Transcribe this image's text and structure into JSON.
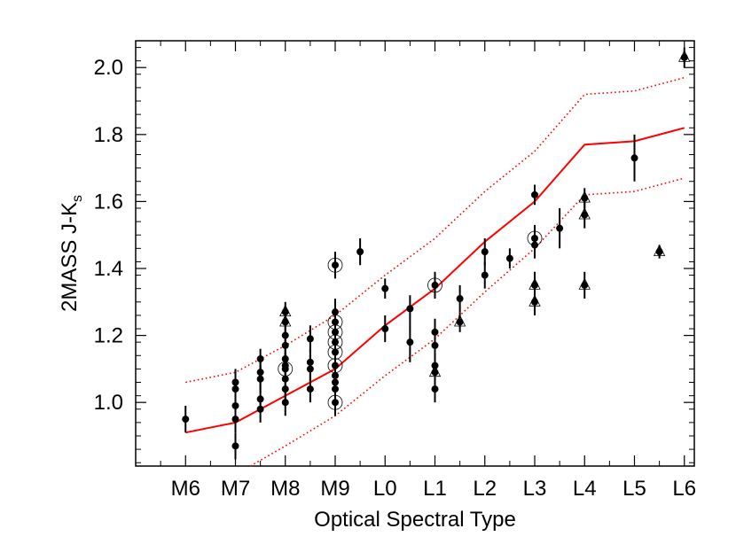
{
  "chart_data": {
    "type": "scatter",
    "title": "",
    "xlabel": "Optical Spectral Type",
    "ylabel_main": "2MASS J-K",
    "ylabel_sub": "s",
    "xlim": [
      -1,
      10.2
    ],
    "ylim": [
      0.81,
      2.08
    ],
    "x_ticks": [
      0,
      1,
      2,
      3,
      4,
      5,
      6,
      7,
      8,
      9,
      10
    ],
    "x_tick_labels": [
      "M6",
      "M7",
      "M8",
      "M9",
      "L0",
      "L1",
      "L2",
      "L3",
      "L4",
      "L5",
      "L6"
    ],
    "y_ticks": [
      1.0,
      1.2,
      1.4,
      1.6,
      1.8,
      2.0
    ],
    "y_tick_labels": [
      "1.0",
      "1.2",
      "1.4",
      "1.6",
      "1.8",
      "2.0"
    ],
    "series": [
      {
        "style": "solid",
        "color": "#ff0000",
        "x": [
          0,
          1,
          2,
          3,
          4,
          5,
          6,
          7,
          8,
          9,
          10
        ],
        "y": [
          0.91,
          0.94,
          1.02,
          1.1,
          1.23,
          1.34,
          1.48,
          1.6,
          1.77,
          1.78,
          1.82
        ]
      },
      {
        "style": "dotted",
        "color": "#ff0000",
        "x": [
          0,
          1,
          2,
          3,
          4,
          5,
          6,
          7,
          8,
          9,
          10
        ],
        "y": [
          1.06,
          1.09,
          1.17,
          1.26,
          1.38,
          1.49,
          1.63,
          1.75,
          1.92,
          1.93,
          1.97
        ]
      },
      {
        "style": "dotted",
        "color": "#ff0000",
        "x": [
          1.3,
          2,
          3,
          4,
          5,
          6,
          7,
          8,
          9,
          10
        ],
        "y": [
          0.81,
          0.87,
          0.96,
          1.08,
          1.19,
          1.33,
          1.46,
          1.62,
          1.63,
          1.67
        ]
      }
    ],
    "points": [
      {
        "x": 0.0,
        "y": 0.95,
        "err": 0.04
      },
      {
        "x": 1.0,
        "y": 1.06,
        "err": 0.04
      },
      {
        "x": 1.0,
        "y": 1.04,
        "err": 0.04
      },
      {
        "x": 1.0,
        "y": 0.99,
        "err": 0.04
      },
      {
        "x": 1.0,
        "y": 0.95,
        "err": 0.04
      },
      {
        "x": 1.0,
        "y": 0.87,
        "err": 0.04
      },
      {
        "x": 1.5,
        "y": 1.13,
        "err": 0.03
      },
      {
        "x": 1.5,
        "y": 1.09,
        "err": 0.04
      },
      {
        "x": 1.5,
        "y": 1.07,
        "err": 0.04
      },
      {
        "x": 1.5,
        "y": 1.01,
        "err": 0.04
      },
      {
        "x": 1.5,
        "y": 0.98,
        "err": 0.04
      },
      {
        "x": 2.0,
        "y": 1.27,
        "err": 0.03,
        "marker": "triangle"
      },
      {
        "x": 2.0,
        "y": 1.24,
        "err": 0.04,
        "marker": "triangle"
      },
      {
        "x": 2.0,
        "y": 1.2,
        "err": 0.04
      },
      {
        "x": 2.0,
        "y": 1.17,
        "err": 0.04
      },
      {
        "x": 2.0,
        "y": 1.13,
        "err": 0.04
      },
      {
        "x": 2.0,
        "y": 1.11,
        "err": 0.04
      },
      {
        "x": 2.0,
        "y": 1.1,
        "err": 0.04,
        "marker": "circle"
      },
      {
        "x": 2.0,
        "y": 1.07,
        "err": 0.04
      },
      {
        "x": 2.0,
        "y": 1.04,
        "err": 0.04
      },
      {
        "x": 2.0,
        "y": 1.0,
        "err": 0.04
      },
      {
        "x": 2.5,
        "y": 1.19,
        "err": 0.04
      },
      {
        "x": 2.5,
        "y": 1.12,
        "err": 0.04
      },
      {
        "x": 2.5,
        "y": 1.1,
        "err": 0.04
      },
      {
        "x": 2.5,
        "y": 1.04,
        "err": 0.04
      },
      {
        "x": 3.0,
        "y": 1.41,
        "err": 0.04,
        "marker": "circle"
      },
      {
        "x": 3.0,
        "y": 1.27,
        "err": 0.04
      },
      {
        "x": 3.0,
        "y": 1.24,
        "err": 0.04,
        "marker": "circle"
      },
      {
        "x": 3.0,
        "y": 1.21,
        "err": 0.04,
        "marker": "circle"
      },
      {
        "x": 3.0,
        "y": 1.18,
        "err": 0.04,
        "marker": "circle"
      },
      {
        "x": 3.0,
        "y": 1.15,
        "err": 0.04,
        "marker": "circle"
      },
      {
        "x": 3.0,
        "y": 1.11,
        "err": 0.04,
        "marker": "circle"
      },
      {
        "x": 3.0,
        "y": 1.08,
        "err": 0.04
      },
      {
        "x": 3.0,
        "y": 1.06,
        "err": 0.04
      },
      {
        "x": 3.0,
        "y": 1.04,
        "err": 0.04
      },
      {
        "x": 3.0,
        "y": 1.0,
        "err": 0.04,
        "marker": "circle"
      },
      {
        "x": 3.5,
        "y": 1.45,
        "err": 0.04
      },
      {
        "x": 4.0,
        "y": 1.34,
        "err": 0.03
      },
      {
        "x": 4.0,
        "y": 1.22,
        "err": 0.04
      },
      {
        "x": 4.5,
        "y": 1.28,
        "err": 0.04
      },
      {
        "x": 4.5,
        "y": 1.18,
        "err": 0.06
      },
      {
        "x": 5.0,
        "y": 1.35,
        "err": 0.04,
        "marker": "circle"
      },
      {
        "x": 5.0,
        "y": 1.21,
        "err": 0.04
      },
      {
        "x": 5.0,
        "y": 1.17,
        "err": 0.04
      },
      {
        "x": 5.0,
        "y": 1.11,
        "err": 0.04
      },
      {
        "x": 5.0,
        "y": 1.09,
        "err": 0.04,
        "marker": "triangle"
      },
      {
        "x": 5.0,
        "y": 1.04,
        "err": 0.04
      },
      {
        "x": 5.5,
        "y": 1.31,
        "err": 0.04
      },
      {
        "x": 5.5,
        "y": 1.24,
        "err": 0.03,
        "marker": "triangle"
      },
      {
        "x": 6.0,
        "y": 1.45,
        "err": 0.04
      },
      {
        "x": 6.0,
        "y": 1.38,
        "err": 0.04
      },
      {
        "x": 6.5,
        "y": 1.43,
        "err": 0.03
      },
      {
        "x": 7.0,
        "y": 1.62,
        "err": 0.03
      },
      {
        "x": 7.0,
        "y": 1.49,
        "err": 0.04,
        "marker": "circle"
      },
      {
        "x": 7.0,
        "y": 1.47,
        "err": 0.04
      },
      {
        "x": 7.0,
        "y": 1.35,
        "err": 0.04,
        "marker": "triangle"
      },
      {
        "x": 7.0,
        "y": 1.3,
        "err": 0.04,
        "marker": "triangle"
      },
      {
        "x": 7.5,
        "y": 1.52,
        "err": 0.06
      },
      {
        "x": 8.0,
        "y": 1.61,
        "err": 0.03,
        "marker": "triangle"
      },
      {
        "x": 8.0,
        "y": 1.56,
        "err": 0.04,
        "marker": "triangle"
      },
      {
        "x": 8.0,
        "y": 1.35,
        "err": 0.04,
        "marker": "triangle"
      },
      {
        "x": 9.0,
        "y": 1.73,
        "err": 0.07
      },
      {
        "x": 9.5,
        "y": 1.45,
        "err": 0.02,
        "marker": "triangle"
      },
      {
        "x": 10.0,
        "y": 2.03,
        "err": 0.03,
        "marker": "triangle"
      }
    ]
  }
}
